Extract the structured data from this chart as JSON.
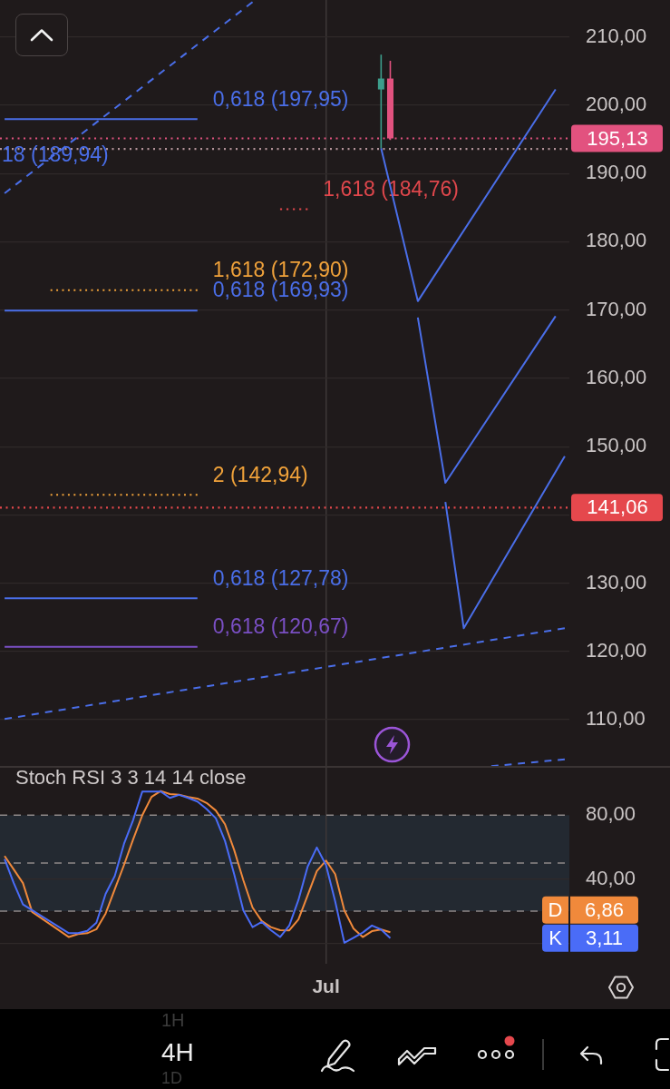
{
  "chart_data": [
    {
      "type": "candlestick",
      "categories": [
        null,
        null,
        null,
        null,
        null,
        null,
        null,
        null,
        null,
        null,
        null,
        null,
        null,
        null,
        null,
        null,
        null,
        null,
        null,
        null,
        null,
        null,
        null,
        null,
        null,
        null,
        null,
        null,
        null,
        null,
        null,
        null,
        null,
        null,
        null,
        null,
        null,
        null,
        null,
        null,
        null,
        null,
        null,
        null,
        null,
        null,
        null,
        null,
        null,
        null,
        null,
        null,
        null,
        null,
        null,
        null,
        null,
        null,
        null,
        null,
        null,
        null
      ],
      "ohlc": [
        null,
        null,
        null,
        null,
        null,
        null,
        null,
        null,
        null,
        null,
        null,
        null,
        null,
        null,
        null,
        null,
        null,
        null,
        null,
        null,
        null,
        null,
        null,
        null,
        null,
        null,
        null,
        null,
        null,
        null,
        null,
        null,
        null,
        null,
        null,
        null,
        null,
        null,
        null,
        null,
        null,
        [
          202.3,
          207.4,
          193.7,
          203.9
        ],
        [
          203.9,
          206.5,
          194.9,
          195.13
        ],
        null,
        null,
        null,
        null,
        null,
        null,
        null,
        null,
        null,
        null,
        null,
        null,
        null,
        null,
        null,
        null,
        null,
        null,
        null
      ],
      "colors": [
        null,
        null,
        null,
        null,
        null,
        null,
        null,
        null,
        null,
        null,
        null,
        null,
        null,
        null,
        null,
        null,
        null,
        null,
        null,
        null,
        null,
        null,
        null,
        null,
        null,
        null,
        null,
        null,
        null,
        null,
        null,
        null,
        null,
        null,
        null,
        null,
        null,
        null,
        null,
        null,
        null,
        "#3d9e8c",
        "#e2527f",
        null,
        null,
        null,
        null,
        null,
        null,
        null,
        null,
        null,
        null,
        null,
        null,
        null,
        null,
        null,
        null,
        null,
        null,
        null
      ],
      "ylim": [
        103.1,
        215.4
      ],
      "yticks": [
        {
          "value": 110,
          "label": "110,00"
        },
        {
          "value": 120,
          "label": "120,00"
        },
        {
          "value": 130,
          "label": "130,00"
        },
        {
          "value": 140,
          "label": null
        },
        {
          "value": 150,
          "label": "150,00"
        },
        {
          "value": 160,
          "label": "160,00"
        },
        {
          "value": 170,
          "label": "170,00"
        },
        {
          "value": 180,
          "label": "180,00"
        },
        {
          "value": 190,
          "label": "190,00"
        },
        {
          "value": 200,
          "label": "200,00"
        },
        {
          "value": 210,
          "label": "210,00"
        }
      ],
      "grid": true,
      "tick_labels": "y",
      "ref_lines": [
        {
          "axis": "y",
          "value": 195.13,
          "label": "195,13",
          "color": "#e2527f",
          "line_style": "dotted"
        },
        {
          "axis": "y",
          "value": 193.6,
          "color": "#b3949a",
          "line_style": "dotted"
        },
        {
          "axis": "y",
          "value": 141.06,
          "label": "141,06",
          "color": "#e5484d",
          "line_style": "dotted"
        }
      ],
      "series": [
        {
          "type": "line",
          "name": "0,618 (197,95)",
          "color": "#4a6ee8",
          "line_style": "solid",
          "values": [
            197.95,
            197.95,
            197.95,
            197.95,
            197.95,
            197.95,
            197.95,
            197.95,
            197.95,
            197.95,
            197.95,
            197.95,
            197.95,
            197.95,
            197.95,
            197.95,
            197.95,
            197.95,
            197.95,
            197.95,
            197.95,
            197.95,
            null,
            null,
            null,
            null,
            null,
            null,
            null,
            null,
            null,
            null,
            null,
            null,
            null,
            null,
            null,
            null,
            null,
            null,
            null,
            null,
            null,
            null,
            null,
            null,
            null,
            null,
            null,
            null,
            null,
            null,
            null,
            null,
            null,
            null,
            null,
            null,
            null,
            null,
            null,
            null
          ]
        },
        {
          "type": "line",
          "name": "1,618 (184,76)",
          "color": "#e0474c",
          "line_style": "dotted",
          "values": [
            null,
            null,
            null,
            null,
            null,
            null,
            null,
            null,
            null,
            null,
            null,
            null,
            null,
            null,
            null,
            null,
            null,
            null,
            null,
            null,
            null,
            null,
            null,
            null,
            null,
            null,
            null,
            null,
            null,
            null,
            184.76,
            184.76,
            184.76,
            184.76,
            null,
            null,
            null,
            null,
            null,
            null,
            null,
            null,
            null,
            null,
            null,
            null,
            null,
            null,
            null,
            null,
            null,
            null,
            null,
            null,
            null,
            null,
            null,
            null,
            null,
            null,
            null,
            null
          ]
        },
        {
          "type": "line",
          "name": "1,618 (172,90)",
          "color": "#f0a23a",
          "line_style": "dotted",
          "values": [
            null,
            null,
            null,
            null,
            null,
            172.9,
            172.9,
            172.9,
            172.9,
            172.9,
            172.9,
            172.9,
            172.9,
            172.9,
            172.9,
            172.9,
            172.9,
            172.9,
            172.9,
            172.9,
            172.9,
            172.9,
            null,
            null,
            null,
            null,
            null,
            null,
            null,
            null,
            null,
            null,
            null,
            null,
            null,
            null,
            null,
            null,
            null,
            null,
            null,
            null,
            null,
            null,
            null,
            null,
            null,
            null,
            null,
            null,
            null,
            null,
            null,
            null,
            null,
            null,
            null,
            null,
            null,
            null,
            null,
            null
          ]
        },
        {
          "type": "line",
          "name": "0,618 (169,93)",
          "color": "#4a6ee8",
          "line_style": "solid",
          "values": [
            169.93,
            169.93,
            169.93,
            169.93,
            169.93,
            169.93,
            169.93,
            169.93,
            169.93,
            169.93,
            169.93,
            169.93,
            169.93,
            169.93,
            169.93,
            169.93,
            169.93,
            169.93,
            169.93,
            169.93,
            169.93,
            169.93,
            null,
            null,
            null,
            null,
            null,
            null,
            null,
            null,
            null,
            null,
            null,
            null,
            null,
            null,
            null,
            null,
            null,
            null,
            null,
            null,
            null,
            null,
            null,
            null,
            null,
            null,
            null,
            null,
            null,
            null,
            null,
            null,
            null,
            null,
            null,
            null,
            null,
            null,
            null,
            null
          ]
        },
        {
          "type": "line",
          "name": "2 (142,94)",
          "color": "#f0a23a",
          "line_style": "dotted",
          "values": [
            null,
            null,
            null,
            null,
            null,
            142.94,
            142.94,
            142.94,
            142.94,
            142.94,
            142.94,
            142.94,
            142.94,
            142.94,
            142.94,
            142.94,
            142.94,
            142.94,
            142.94,
            142.94,
            142.94,
            142.94,
            null,
            null,
            null,
            null,
            null,
            null,
            null,
            null,
            null,
            null,
            null,
            null,
            null,
            null,
            null,
            null,
            null,
            null,
            null,
            null,
            null,
            null,
            null,
            null,
            null,
            null,
            null,
            null,
            null,
            null,
            null,
            null,
            null,
            null,
            null,
            null,
            null,
            null,
            null,
            null
          ]
        },
        {
          "type": "line",
          "name": "0,618 (127,78)",
          "color": "#4a6ee8",
          "line_style": "solid",
          "values": [
            127.78,
            127.78,
            127.78,
            127.78,
            127.78,
            127.78,
            127.78,
            127.78,
            127.78,
            127.78,
            127.78,
            127.78,
            127.78,
            127.78,
            127.78,
            127.78,
            127.78,
            127.78,
            127.78,
            127.78,
            127.78,
            127.78,
            null,
            null,
            null,
            null,
            null,
            null,
            null,
            null,
            null,
            null,
            null,
            null,
            null,
            null,
            null,
            null,
            null,
            null,
            null,
            null,
            null,
            null,
            null,
            null,
            null,
            null,
            null,
            null,
            null,
            null,
            null,
            null,
            null,
            null,
            null,
            null,
            null,
            null,
            null,
            null
          ]
        },
        {
          "type": "line",
          "name": "0,618 (120,67)",
          "color": "#7a4fc4",
          "line_style": "solid",
          "values": [
            120.67,
            120.67,
            120.67,
            120.67,
            120.67,
            120.67,
            120.67,
            120.67,
            120.67,
            120.67,
            120.67,
            120.67,
            120.67,
            120.67,
            120.67,
            120.67,
            120.67,
            120.67,
            120.67,
            120.67,
            120.67,
            120.67,
            null,
            null,
            null,
            null,
            null,
            null,
            null,
            null,
            null,
            null,
            null,
            null,
            null,
            null,
            null,
            null,
            null,
            null,
            null,
            null,
            null,
            null,
            null,
            null,
            null,
            null,
            null,
            null,
            null,
            null,
            null,
            null,
            null,
            null,
            null,
            null,
            null,
            null,
            null,
            null
          ]
        },
        {
          "type": "line",
          "color": "#4a6ee8",
          "line_style": "dashed",
          "values": [
            187.1,
            null,
            null,
            null,
            null,
            null,
            null,
            null,
            null,
            null,
            null,
            null,
            null,
            null,
            null,
            null,
            null,
            null,
            null,
            null,
            null,
            null,
            null,
            null,
            null,
            null,
            null,
            215.1,
            null,
            null,
            null,
            null,
            null,
            null,
            null,
            null,
            null,
            null,
            null,
            null,
            null,
            null,
            null,
            null,
            null,
            null,
            null,
            null,
            null,
            null,
            null,
            null,
            null,
            null,
            null,
            null,
            null,
            null,
            null,
            null,
            null,
            null
          ]
        },
        {
          "type": "line",
          "color": "#4a6ee8",
          "line_style": "dashed",
          "values": [
            110.1,
            null,
            null,
            null,
            null,
            null,
            null,
            null,
            null,
            null,
            null,
            null,
            null,
            null,
            null,
            null,
            null,
            null,
            null,
            null,
            null,
            null,
            null,
            null,
            null,
            null,
            null,
            null,
            null,
            null,
            null,
            null,
            null,
            null,
            null,
            null,
            null,
            null,
            null,
            null,
            null,
            null,
            null,
            null,
            null,
            null,
            null,
            null,
            null,
            null,
            null,
            null,
            null,
            null,
            null,
            null,
            null,
            null,
            null,
            null,
            null,
            123.4
          ]
        },
        {
          "type": "line",
          "color": "#4a6ee8",
          "line_style": "dashed",
          "values": [
            null,
            null,
            null,
            null,
            null,
            null,
            null,
            null,
            null,
            null,
            null,
            null,
            null,
            null,
            null,
            null,
            null,
            null,
            null,
            null,
            null,
            null,
            null,
            null,
            null,
            null,
            null,
            null,
            null,
            null,
            null,
            null,
            null,
            null,
            null,
            null,
            null,
            null,
            null,
            null,
            null,
            null,
            null,
            null,
            null,
            null,
            null,
            null,
            null,
            null,
            null,
            null,
            null,
            103.2,
            null,
            null,
            null,
            null,
            null,
            null,
            null,
            104.2
          ]
        },
        {
          "type": "line",
          "color": "#4a6ee8",
          "line_style": "solid",
          "values": [
            null,
            null,
            null,
            null,
            null,
            null,
            null,
            null,
            null,
            null,
            null,
            null,
            null,
            null,
            null,
            null,
            null,
            null,
            null,
            null,
            null,
            null,
            null,
            null,
            null,
            null,
            null,
            null,
            null,
            null,
            null,
            null,
            null,
            null,
            null,
            null,
            null,
            null,
            null,
            null,
            null,
            193.7,
            null,
            null,
            null,
            171.3,
            null,
            null,
            null,
            null,
            null,
            null,
            null,
            null,
            null,
            null,
            null,
            null,
            null,
            null,
            202.3,
            null
          ]
        },
        {
          "type": "line",
          "color": "#4a6ee8",
          "line_style": "solid",
          "values": [
            null,
            null,
            null,
            null,
            null,
            null,
            null,
            null,
            null,
            null,
            null,
            null,
            null,
            null,
            null,
            null,
            null,
            null,
            null,
            null,
            null,
            null,
            null,
            null,
            null,
            null,
            null,
            null,
            null,
            null,
            null,
            null,
            null,
            null,
            null,
            null,
            null,
            null,
            null,
            null,
            null,
            null,
            null,
            null,
            null,
            168.9,
            null,
            null,
            144.7,
            null,
            null,
            null,
            null,
            null,
            null,
            null,
            null,
            null,
            null,
            null,
            169.1,
            null
          ]
        },
        {
          "type": "line",
          "color": "#4a6ee8",
          "line_style": "solid",
          "values": [
            null,
            null,
            null,
            null,
            null,
            null,
            null,
            null,
            null,
            null,
            null,
            null,
            null,
            null,
            null,
            null,
            null,
            null,
            null,
            null,
            null,
            null,
            null,
            null,
            null,
            null,
            null,
            null,
            null,
            null,
            null,
            null,
            null,
            null,
            null,
            null,
            null,
            null,
            null,
            null,
            null,
            null,
            null,
            null,
            null,
            null,
            null,
            null,
            141.9,
            null,
            123.4,
            null,
            null,
            null,
            null,
            null,
            null,
            null,
            null,
            null,
            null,
            148.6
          ]
        }
      ],
      "annotations": [
        "18 (189,94)"
      ]
    },
    {
      "type": "line",
      "title": "Stoch RSI 3 3 14 14 close",
      "categories": [
        null,
        null,
        null,
        null,
        null,
        null,
        null,
        null,
        null,
        null,
        null,
        null,
        null,
        null,
        null,
        null,
        null,
        null,
        null,
        null,
        null,
        null,
        null,
        null,
        null,
        null,
        null,
        null,
        null,
        null,
        null,
        null,
        null,
        null,
        null,
        "Jul",
        null,
        null,
        null,
        null,
        null,
        null,
        null,
        null,
        null,
        null,
        null,
        null,
        null,
        null,
        null,
        null,
        null,
        null,
        null,
        null,
        null,
        null,
        null,
        null,
        null,
        null
      ],
      "ylim": [
        -12.9,
        110.2
      ],
      "yticks": [
        {
          "value": 0,
          "label": null
        },
        {
          "value": 40,
          "label": "40,00"
        },
        {
          "value": 80,
          "label": "80,00"
        }
      ],
      "grid": true,
      "legend": "bottom right",
      "bands": [
        {
          "axis": "y",
          "from": 20,
          "to": 80,
          "color": "#232931"
        }
      ],
      "ref_lines": [
        {
          "axis": "y",
          "value": 80,
          "color": "#8e8888",
          "line_style": "dashed"
        },
        {
          "axis": "y",
          "value": 50,
          "color": "#8e8888",
          "line_style": "dashed"
        },
        {
          "axis": "y",
          "value": 20,
          "color": "#8e8888",
          "line_style": "dashed"
        }
      ],
      "series": [
        {
          "name": "K",
          "color": "#4a6cf7",
          "values": [
            52.6,
            37.5,
            24.2,
            null,
            null,
            null,
            null,
            6.2,
            6.2,
            7.7,
            12.8,
            30.8,
            42,
            62,
            77,
            94.8,
            94.8,
            94.8,
            90.8,
            92.7,
            90.8,
            88.5,
            83.8,
            78.1,
            63.9,
            43.1,
            20.4,
            10,
            13.2,
            8.1,
            3.8,
            11,
            27,
            47.8,
            59.8,
            48.8,
            26.1,
            0.2,
            3.4,
            6.6,
            11,
            8.5,
            3.11,
            null,
            null,
            null,
            null,
            null,
            null,
            null,
            null,
            null,
            null,
            null,
            null,
            null,
            null,
            null,
            null,
            null,
            null,
            null
          ]
        },
        {
          "name": "D",
          "color": "#f0893b",
          "values": [
            54.5,
            46,
            37.5,
            19.5,
            null,
            null,
            null,
            3.8,
            5.7,
            6.2,
            8.7,
            18.5,
            33.7,
            48.8,
            64.9,
            80,
            91.4,
            95.1,
            93.2,
            92.7,
            91.4,
            90.4,
            87.6,
            82.9,
            74.3,
            58.2,
            39.3,
            22.3,
            13.8,
            10,
            8.1,
            8,
            14.8,
            29.9,
            45,
            51.6,
            43.1,
            20.4,
            9.1,
            3.8,
            7.5,
            8.5,
            6.86,
            null,
            null,
            null,
            null,
            null,
            null,
            null,
            null,
            null,
            null,
            null,
            null,
            null,
            null,
            null,
            null,
            null,
            null,
            null
          ]
        }
      ],
      "annotations": [
        "3,11",
        "6,86"
      ]
    },
    {
      "type": "other",
      "annotations": [
        "1H",
        "4H",
        "1D"
      ]
    }
  ]
}
